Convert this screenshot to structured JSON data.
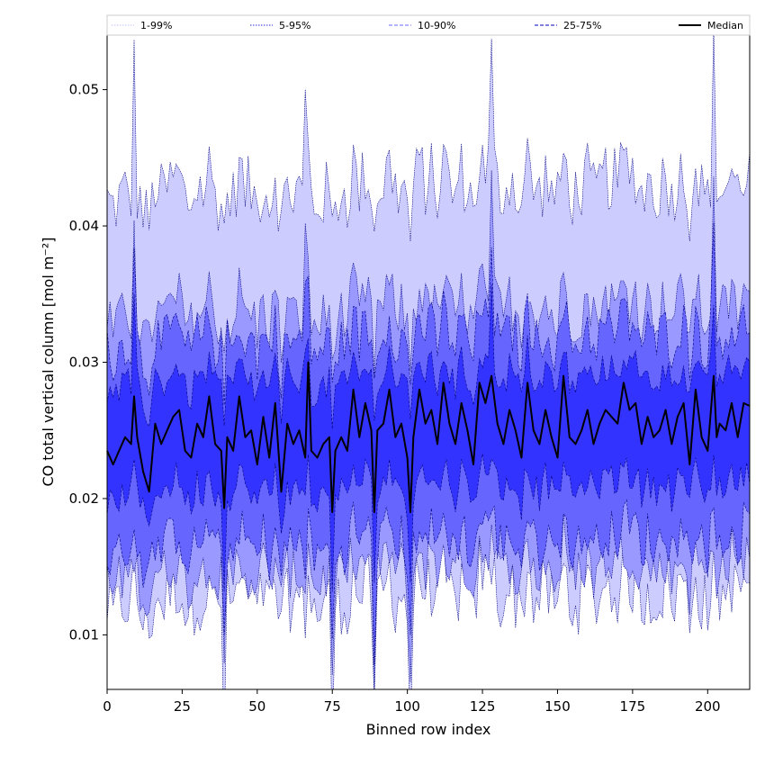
{
  "chart_data": {
    "type": "area",
    "title": "",
    "xlabel": "Binned row index",
    "ylabel": "CO total vertical column [mol m⁻²]",
    "xlim": [
      0,
      214
    ],
    "ylim": [
      0.006,
      0.054
    ],
    "xticks": [
      0,
      25,
      50,
      75,
      100,
      125,
      150,
      175,
      200
    ],
    "yticks": [
      0.01,
      0.02,
      0.03,
      0.04,
      0.05
    ],
    "grid": false,
    "legend_position": "top",
    "legend": [
      {
        "label": "1-99%",
        "color": "#ccccff",
        "style": "dotted"
      },
      {
        "label": "5-95%",
        "color": "#5555dd",
        "style": "dotted"
      },
      {
        "label": "10-90%",
        "color": "#8888ff",
        "style": "dashed"
      },
      {
        "label": "25-75%",
        "color": "#3333cc",
        "style": "dashed"
      },
      {
        "label": "Median",
        "color": "#000000",
        "style": "solid"
      }
    ],
    "bands": [
      {
        "name": "1-99%",
        "fill": "#ccccff",
        "edge": "#000080",
        "lower_center": 0.0125,
        "upper_center": 0.0425
      },
      {
        "name": "5-95%",
        "fill": "#9999ff",
        "edge": "#000080",
        "lower_center": 0.0145,
        "upper_center": 0.0335
      },
      {
        "name": "10-90%",
        "fill": "#6666ff",
        "edge": "#000080",
        "lower_center": 0.0165,
        "upper_center": 0.0315
      },
      {
        "name": "25-75%",
        "fill": "#3333ff",
        "edge": "#000080",
        "lower_center": 0.0205,
        "upper_center": 0.0285
      }
    ],
    "series": [
      {
        "name": "Median",
        "color": "#000000",
        "x": [
          0,
          2,
          4,
          6,
          8,
          9,
          10,
          12,
          14,
          16,
          18,
          20,
          22,
          24,
          26,
          28,
          30,
          32,
          34,
          36,
          38,
          39,
          40,
          42,
          44,
          46,
          48,
          50,
          52,
          54,
          56,
          58,
          60,
          62,
          64,
          66,
          67,
          68,
          70,
          72,
          74,
          75,
          76,
          78,
          80,
          82,
          84,
          86,
          88,
          89,
          90,
          92,
          94,
          96,
          98,
          100,
          101,
          102,
          104,
          106,
          108,
          110,
          112,
          114,
          116,
          118,
          120,
          122,
          124,
          126,
          128,
          130,
          132,
          134,
          136,
          138,
          140,
          142,
          144,
          146,
          148,
          150,
          152,
          154,
          156,
          158,
          160,
          162,
          164,
          166,
          168,
          170,
          172,
          174,
          176,
          178,
          180,
          182,
          184,
          186,
          188,
          190,
          192,
          194,
          196,
          198,
          200,
          202,
          203,
          204,
          206,
          208,
          210,
          212,
          214
        ],
        "y": [
          0.0235,
          0.0225,
          0.0235,
          0.0245,
          0.024,
          0.0275,
          0.0245,
          0.022,
          0.0205,
          0.0255,
          0.024,
          0.025,
          0.026,
          0.0265,
          0.0235,
          0.023,
          0.0255,
          0.0245,
          0.0275,
          0.024,
          0.0235,
          0.0193,
          0.0245,
          0.0235,
          0.0275,
          0.0245,
          0.025,
          0.0225,
          0.026,
          0.023,
          0.027,
          0.0205,
          0.0255,
          0.024,
          0.025,
          0.023,
          0.03,
          0.0235,
          0.023,
          0.024,
          0.0245,
          0.019,
          0.0235,
          0.0245,
          0.0235,
          0.028,
          0.0245,
          0.027,
          0.025,
          0.019,
          0.025,
          0.0255,
          0.028,
          0.0245,
          0.0255,
          0.023,
          0.019,
          0.0245,
          0.028,
          0.0255,
          0.0265,
          0.024,
          0.0285,
          0.0255,
          0.024,
          0.027,
          0.025,
          0.0225,
          0.0285,
          0.027,
          0.029,
          0.0255,
          0.024,
          0.0265,
          0.025,
          0.023,
          0.0285,
          0.025,
          0.024,
          0.0265,
          0.0245,
          0.023,
          0.029,
          0.0245,
          0.024,
          0.025,
          0.0265,
          0.024,
          0.0255,
          0.0265,
          0.026,
          0.0255,
          0.0285,
          0.0265,
          0.027,
          0.024,
          0.026,
          0.0245,
          0.025,
          0.0265,
          0.024,
          0.026,
          0.027,
          0.0225,
          0.028,
          0.0245,
          0.0235,
          0.029,
          0.0245,
          0.0255,
          0.025,
          0.027,
          0.0245,
          0.027,
          0.0268
        ]
      }
    ]
  }
}
